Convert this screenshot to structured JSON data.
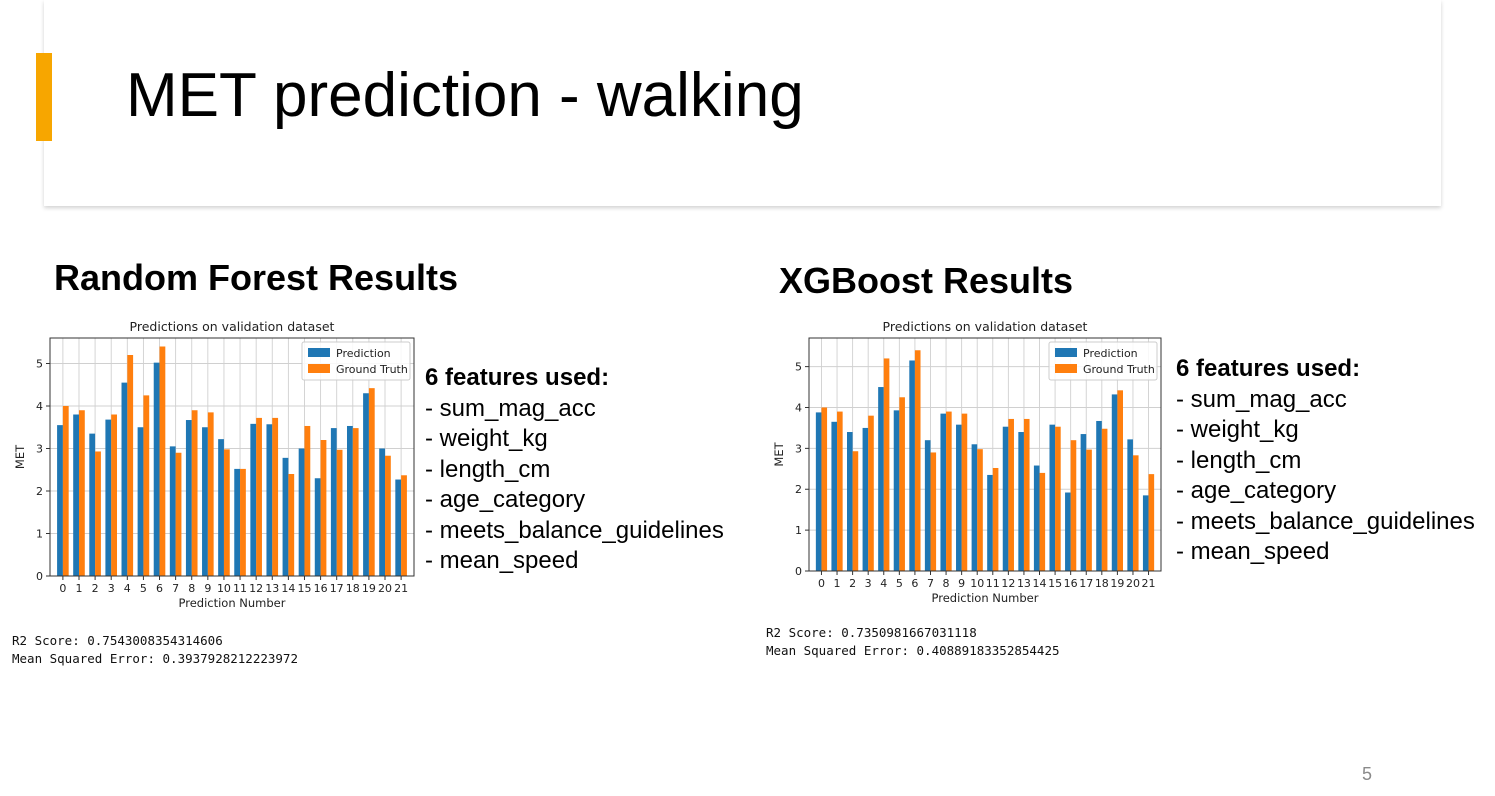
{
  "slide": {
    "title": "MET prediction - walking",
    "page_number": "5",
    "accent_color": "#f7a600"
  },
  "sections": [
    {
      "heading": "Random Forest Results",
      "features_heading": "6 features used:",
      "features": [
        "- sum_mag_acc",
        "- weight_kg",
        "- length_cm",
        "- age_category",
        "- meets_balance_guidelines",
        "- mean_speed"
      ],
      "r2_line": "R2 Score: 0.7543008354314606",
      "mse_line": "Mean Squared Error: 0.3937928212223972"
    },
    {
      "heading": "XGBoost Results",
      "features_heading": "6 features used:",
      "features": [
        "- sum_mag_acc",
        "- weight_kg",
        "- length_cm",
        "- age_category",
        "- meets_balance_guidelines",
        "- mean_speed"
      ],
      "r2_line": "R2 Score: 0.7350981667031118",
      "mse_line": "Mean Squared Error: 0.40889183352854425"
    }
  ],
  "chart_data": [
    {
      "type": "bar",
      "title": "Predictions on validation dataset",
      "xlabel": "Prediction Number",
      "ylabel": "MET",
      "categories": [
        "0",
        "1",
        "2",
        "3",
        "4",
        "5",
        "6",
        "7",
        "8",
        "9",
        "10",
        "11",
        "12",
        "13",
        "14",
        "15",
        "16",
        "17",
        "18",
        "19",
        "20",
        "21"
      ],
      "ylim": [
        0,
        5.6
      ],
      "yticks": [
        0,
        1,
        2,
        3,
        4,
        5
      ],
      "grid": true,
      "legend_position": "top-right",
      "series": [
        {
          "name": "Prediction",
          "color": "#1f77b4",
          "values": [
            3.55,
            3.8,
            3.35,
            3.68,
            4.55,
            3.5,
            5.02,
            3.05,
            3.67,
            3.5,
            3.22,
            2.52,
            3.58,
            3.57,
            2.78,
            3.0,
            2.3,
            3.48,
            3.53,
            4.3,
            3.0,
            2.27
          ]
        },
        {
          "name": "Ground Truth",
          "color": "#ff7f0e",
          "values": [
            4.0,
            3.9,
            2.93,
            3.8,
            5.2,
            4.25,
            5.4,
            2.9,
            3.9,
            3.85,
            2.98,
            2.52,
            3.72,
            3.72,
            2.4,
            3.53,
            3.2,
            2.97,
            3.48,
            4.42,
            2.83,
            2.37
          ]
        }
      ]
    },
    {
      "type": "bar",
      "title": "Predictions on validation dataset",
      "xlabel": "Prediction Number",
      "ylabel": "MET",
      "categories": [
        "0",
        "1",
        "2",
        "3",
        "4",
        "5",
        "6",
        "7",
        "8",
        "9",
        "10",
        "11",
        "12",
        "13",
        "14",
        "15",
        "16",
        "17",
        "18",
        "19",
        "20",
        "21"
      ],
      "ylim": [
        0,
        5.7
      ],
      "yticks": [
        0,
        1,
        2,
        3,
        4,
        5
      ],
      "grid": true,
      "legend_position": "top-right",
      "series": [
        {
          "name": "Prediction",
          "color": "#1f77b4",
          "values": [
            3.88,
            3.65,
            3.4,
            3.5,
            4.5,
            3.93,
            5.15,
            3.2,
            3.85,
            3.58,
            3.1,
            2.35,
            3.53,
            3.4,
            2.58,
            3.58,
            1.92,
            3.35,
            3.67,
            4.32,
            3.22,
            1.85
          ]
        },
        {
          "name": "Ground Truth",
          "color": "#ff7f0e",
          "values": [
            4.0,
            3.9,
            2.93,
            3.8,
            5.2,
            4.25,
            5.4,
            2.9,
            3.9,
            3.85,
            2.98,
            2.52,
            3.72,
            3.72,
            2.4,
            3.53,
            3.2,
            2.97,
            3.48,
            4.42,
            2.83,
            2.37
          ]
        }
      ]
    }
  ]
}
